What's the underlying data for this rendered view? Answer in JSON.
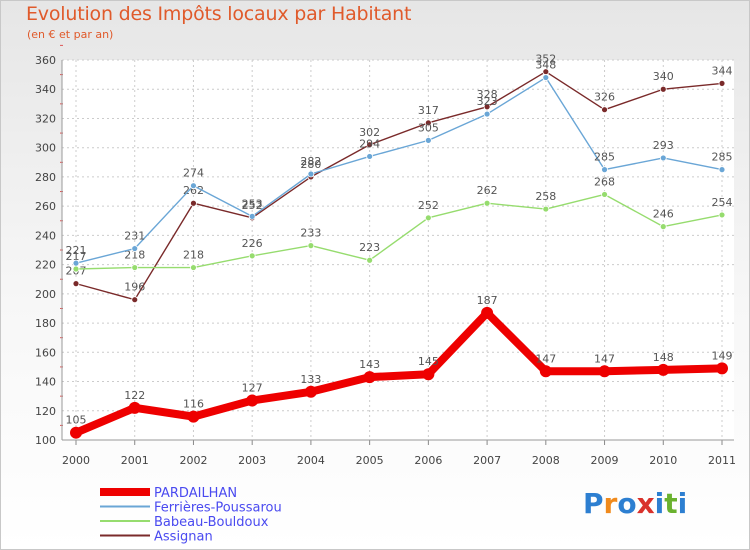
{
  "title": "Evolution des Impôts locaux par Habitant",
  "subtitle": "(en € et par an)",
  "logo": {
    "text": "Proxiti",
    "colors": [
      "#2d7fd1",
      "#f08a1c",
      "#2d7fd1",
      "#d9312b",
      "#2d7fd1",
      "#6ab22f",
      "#2d7fd1"
    ]
  },
  "chart_data": {
    "type": "line",
    "title": "Evolution des Impôts locaux par Habitant",
    "subtitle": "(en € et par an)",
    "xlabel": "",
    "ylabel": "",
    "x": [
      "2000",
      "2001",
      "2002",
      "2003",
      "2004",
      "2005",
      "2006",
      "2007",
      "2008",
      "2009",
      "2010",
      "2011"
    ],
    "ylim": [
      100,
      360
    ],
    "yticks": [
      100,
      120,
      140,
      160,
      180,
      200,
      220,
      240,
      260,
      280,
      300,
      320,
      340,
      360
    ],
    "grid": true,
    "legend_position": "bottom-left",
    "series": [
      {
        "name": "PARDAILHAN",
        "color": "#ee0000",
        "labelColor": "#4a4af0",
        "values": [
          105,
          122,
          116,
          127,
          133,
          143,
          145,
          187,
          147,
          147,
          148,
          149
        ]
      },
      {
        "name": "Ferrières-Poussarou",
        "color": "#6aa6d6",
        "labelColor": "#4a4af0",
        "values": [
          221,
          231,
          274,
          253,
          282,
          294,
          305,
          323,
          348,
          285,
          293,
          285
        ]
      },
      {
        "name": "Babeau-Bouldoux",
        "color": "#96dc6e",
        "labelColor": "#4a4af0",
        "values": [
          217,
          218,
          218,
          226,
          233,
          223,
          252,
          262,
          258,
          268,
          246,
          254
        ]
      },
      {
        "name": "Assignan",
        "color": "#7a2a2a",
        "labelColor": "#4a4af0",
        "values": [
          207,
          196,
          262,
          252,
          280,
          302,
          317,
          328,
          352,
          326,
          340,
          344
        ]
      }
    ]
  }
}
